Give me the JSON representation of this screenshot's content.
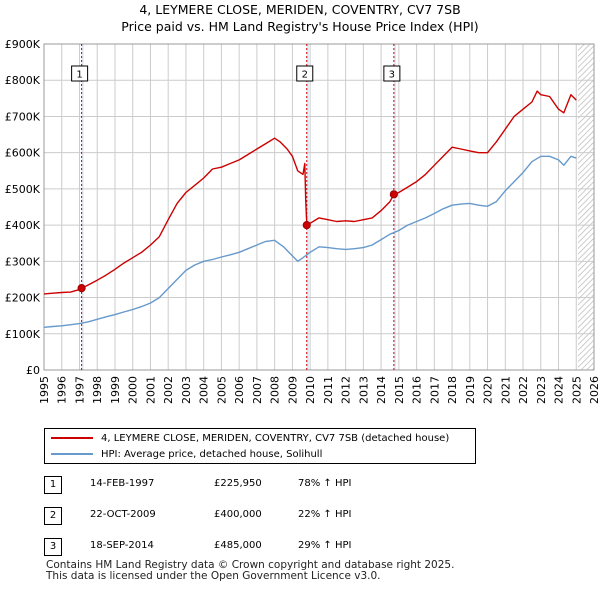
{
  "title_line1": "4, LEYMERE CLOSE, MERIDEN, COVENTRY, CV7 7SB",
  "title_line2": "Price paid vs. HM Land Registry's House Price Index (HPI)",
  "colors": {
    "property": "#cc0000",
    "hpi": "#6699cc",
    "grid": "#cccccc",
    "shade": "#dde6f4"
  },
  "legend": {
    "property_label": "4, LEYMERE CLOSE, MERIDEN, COVENTRY, CV7 7SB (detached house)",
    "hpi_label": "HPI: Average price, detached house, Solihull"
  },
  "sales": [
    {
      "num": "1",
      "date": "14-FEB-1997",
      "price": "£225,950",
      "hpi": "78% ↑ HPI"
    },
    {
      "num": "2",
      "date": "22-OCT-2009",
      "price": "£400,000",
      "hpi": "22% ↑ HPI"
    },
    {
      "num": "3",
      "date": "18-SEP-2014",
      "price": "£485,000",
      "hpi": "29% ↑ HPI"
    }
  ],
  "footer_line1": "Contains HM Land Registry data © Crown copyright and database right 2025.",
  "footer_line2": "This data is licensed under the Open Government Licence v3.0.",
  "chart_data": {
    "type": "line",
    "xlim": [
      1995,
      2026
    ],
    "ylim": [
      0,
      900000
    ],
    "grid": true,
    "x_ticks": [
      "1995",
      "1996",
      "1997",
      "1998",
      "1999",
      "2000",
      "2001",
      "2002",
      "2003",
      "2004",
      "2005",
      "2006",
      "2007",
      "2008",
      "2009",
      "2010",
      "2011",
      "2012",
      "2013",
      "2014",
      "2015",
      "2016",
      "2017",
      "2018",
      "2019",
      "2020",
      "2021",
      "2022",
      "2023",
      "2024",
      "2025",
      "2026"
    ],
    "y_ticks": [
      {
        "value": 0,
        "label": "£0"
      },
      {
        "value": 100000,
        "label": "£100K"
      },
      {
        "value": 200000,
        "label": "£200K"
      },
      {
        "value": 300000,
        "label": "£300K"
      },
      {
        "value": 400000,
        "label": "£400K"
      },
      {
        "value": 500000,
        "label": "£500K"
      },
      {
        "value": 600000,
        "label": "£600K"
      },
      {
        "value": 700000,
        "label": "£700K"
      },
      {
        "value": 800000,
        "label": "£800K"
      },
      {
        "value": 900000,
        "label": "£900K"
      }
    ],
    "hatched_from": 2025.1,
    "series": [
      {
        "key": "property",
        "x": [
          1995.0,
          1995.5,
          1996.0,
          1996.5,
          1997.0,
          1997.12,
          1997.5,
          1998.0,
          1998.5,
          1999.0,
          1999.5,
          2000.0,
          2000.5,
          2001.0,
          2001.5,
          2002.0,
          2002.5,
          2003.0,
          2003.5,
          2004.0,
          2004.5,
          2005.0,
          2005.5,
          2006.0,
          2006.5,
          2007.0,
          2007.5,
          2008.0,
          2008.3,
          2008.7,
          2009.0,
          2009.3,
          2009.6,
          2009.7,
          2009.75,
          2009.81,
          2010.0,
          2010.5,
          2011.0,
          2011.5,
          2012.0,
          2012.5,
          2013.0,
          2013.5,
          2014.0,
          2014.5,
          2014.72,
          2015.0,
          2015.5,
          2016.0,
          2016.5,
          2017.0,
          2017.5,
          2018.0,
          2018.5,
          2019.0,
          2019.5,
          2020.0,
          2020.5,
          2021.0,
          2021.5,
          2022.0,
          2022.5,
          2022.8,
          2023.0,
          2023.5,
          2024.0,
          2024.3,
          2024.7,
          2025.0
        ],
        "values": [
          210000,
          212000,
          214000,
          215000,
          222000,
          225950,
          235000,
          248000,
          262000,
          278000,
          295000,
          310000,
          325000,
          345000,
          368000,
          415000,
          460000,
          490000,
          510000,
          530000,
          555000,
          560000,
          570000,
          580000,
          595000,
          610000,
          625000,
          640000,
          630000,
          610000,
          590000,
          550000,
          540000,
          570000,
          470000,
          400000,
          405000,
          420000,
          415000,
          410000,
          412000,
          410000,
          415000,
          420000,
          440000,
          465000,
          485000,
          490000,
          505000,
          520000,
          540000,
          565000,
          590000,
          615000,
          610000,
          605000,
          600000,
          600000,
          630000,
          665000,
          700000,
          720000,
          740000,
          770000,
          760000,
          755000,
          720000,
          710000,
          760000,
          745000
        ]
      },
      {
        "key": "hpi",
        "x": [
          1995.0,
          1995.5,
          1996.0,
          1996.5,
          1997.0,
          1997.5,
          1998.0,
          1998.5,
          1999.0,
          1999.5,
          2000.0,
          2000.5,
          2001.0,
          2001.5,
          2002.0,
          2002.5,
          2003.0,
          2003.5,
          2004.0,
          2004.5,
          2005.0,
          2005.5,
          2006.0,
          2006.5,
          2007.0,
          2007.5,
          2008.0,
          2008.5,
          2009.0,
          2009.3,
          2009.6,
          2010.0,
          2010.5,
          2011.0,
          2011.5,
          2012.0,
          2012.5,
          2013.0,
          2013.5,
          2014.0,
          2014.5,
          2015.0,
          2015.5,
          2016.0,
          2016.5,
          2017.0,
          2017.5,
          2018.0,
          2018.5,
          2019.0,
          2019.5,
          2020.0,
          2020.5,
          2021.0,
          2021.5,
          2022.0,
          2022.5,
          2023.0,
          2023.5,
          2024.0,
          2024.3,
          2024.7,
          2025.0
        ],
        "values": [
          118000,
          120000,
          122000,
          125000,
          128000,
          133000,
          140000,
          147000,
          153000,
          160000,
          167000,
          175000,
          185000,
          200000,
          225000,
          250000,
          275000,
          290000,
          300000,
          305000,
          312000,
          318000,
          325000,
          335000,
          345000,
          355000,
          358000,
          340000,
          315000,
          300000,
          310000,
          325000,
          340000,
          338000,
          335000,
          333000,
          335000,
          338000,
          345000,
          360000,
          375000,
          385000,
          400000,
          410000,
          420000,
          432000,
          445000,
          455000,
          458000,
          460000,
          455000,
          452000,
          465000,
          495000,
          520000,
          545000,
          575000,
          590000,
          590000,
          580000,
          565000,
          590000,
          585000
        ]
      }
    ],
    "markers": [
      {
        "label": "1",
        "x": 1997.12,
        "y": 225950
      },
      {
        "label": "2",
        "x": 2009.81,
        "y": 400000
      },
      {
        "label": "3",
        "x": 2014.72,
        "y": 485000
      }
    ]
  }
}
